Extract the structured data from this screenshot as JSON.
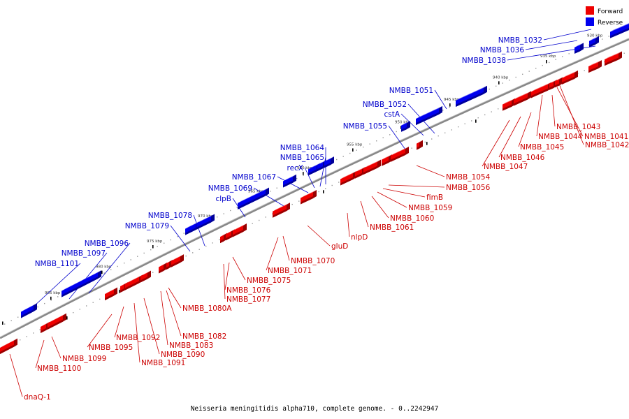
{
  "caption": "Neisseria meningitidis alpha710, complete genome. - 0..2242947",
  "legend": {
    "forward": "Forward",
    "reverse": "Reverse",
    "forward_color": "#ee0000",
    "reverse_color": "#0000ee"
  },
  "colors": {
    "backbone": "#888888",
    "forward_label": "#cc0000",
    "reverse_label": "#0000cc",
    "leader": "#666666"
  },
  "scale_ticks": [
    "940 kbp",
    "945 kbp",
    "950 kbp",
    "955 kbp",
    "960 kbp",
    "965 kbp",
    "970 kbp",
    "975 kbp",
    "980 kbp",
    "985 kbp",
    "935 kbp",
    "930 kbp"
  ],
  "reverse_genes": [
    "NMBB_1032",
    "NMBB_1036",
    "NMBB_1038",
    "NMBB_1051",
    "NMBB_1052",
    "cstA",
    "NMBB_1055",
    "NMBB_1064",
    "NMBB_1065",
    "recX",
    "NMBB_1067",
    "NMBB_1069",
    "clpB",
    "NMBB_1078",
    "NMBB_1079",
    "NMBB_1096",
    "NMBB_1097",
    "NMBB_1101"
  ],
  "forward_genes": [
    "NMBB_1043",
    "NMBB_1044",
    "NMBB_1041",
    "NMBB_1042",
    "NMBB_1045",
    "NMBB_1046",
    "NMBB_1047",
    "NMBB_1054",
    "NMBB_1056",
    "fimB",
    "NMBB_1059",
    "NMBB_1060",
    "NMBB_1061",
    "nlpD",
    "gluD",
    "NMBB_1070",
    "NMBB_1071",
    "NMBB_1075",
    "NMBB_1076",
    "NMBB_1077",
    "NMBB_1080A",
    "NMBB_1082",
    "NMBB_1083",
    "NMBB_1090",
    "NMBB_1091",
    "NMBB_1092",
    "NMBB_1095",
    "NMBB_1099",
    "NMBB_1100",
    "dnaQ-1"
  ]
}
